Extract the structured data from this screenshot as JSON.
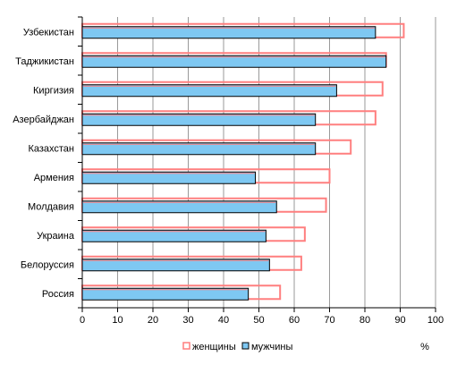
{
  "chart_data": {
    "type": "bar",
    "orientation": "horizontal",
    "categories": [
      "Узбекистан",
      "Таджикистан",
      "Киргизия",
      "Азербайджан",
      "Казахстан",
      "Армения",
      "Молдавия",
      "Украина",
      "Белоруссия",
      "Россия"
    ],
    "series": [
      {
        "name": "женщины",
        "values": [
          91,
          86,
          85,
          83,
          76,
          70,
          69,
          63,
          62,
          56
        ],
        "color": "#ff7f7f",
        "style": "outline"
      },
      {
        "name": "мужчины",
        "values": [
          83,
          86,
          72,
          66,
          66,
          49,
          55,
          52,
          53,
          47
        ],
        "color": "#7ec8f2",
        "style": "filled"
      }
    ],
    "xlim": [
      0,
      100
    ],
    "xticks": [
      0,
      10,
      20,
      30,
      40,
      50,
      60,
      70,
      80,
      90,
      100
    ],
    "xlabel": "",
    "ylabel": "",
    "unit_label": "%",
    "grid": "vertical",
    "legend_position": "bottom"
  }
}
